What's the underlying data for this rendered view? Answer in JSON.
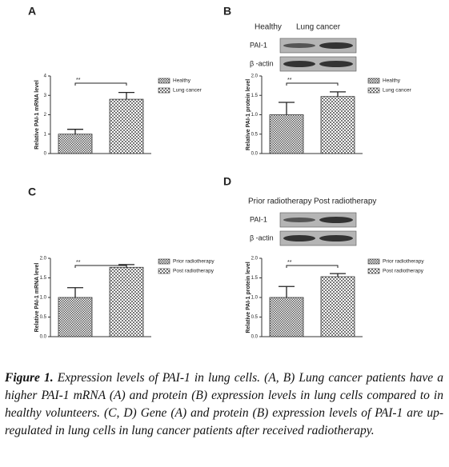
{
  "chart_data": [
    {
      "type": "bar",
      "panel": "A",
      "ylabel": "Relative PAI-1 mRNA level",
      "significance": "**",
      "categories": [
        "Healthy",
        "Lung cancer"
      ],
      "values": [
        1.0,
        2.8
      ],
      "errors": [
        0.25,
        0.35
      ],
      "ylim": [
        0,
        4
      ],
      "yticks": [
        0,
        1,
        2,
        3,
        4
      ]
    },
    {
      "type": "bar",
      "panel": "B",
      "ylabel": "Relative PAI-1 protein level",
      "significance": "**",
      "categories": [
        "Healthy",
        "Lung cancer"
      ],
      "values": [
        1.0,
        1.47
      ],
      "errors": [
        0.32,
        0.12
      ],
      "ylim": [
        0,
        2
      ],
      "yticks": [
        {
          "value": 0,
          "label": "0.0"
        },
        {
          "value": 0.5,
          "label": "0.5"
        },
        {
          "value": 1,
          "label": "1.0"
        },
        {
          "value": 1.5,
          "label": "1.5"
        },
        {
          "value": 2,
          "label": "2.0"
        }
      ],
      "blot": {
        "columns": [
          "Healthy",
          "Lung cancer"
        ],
        "rows": [
          "PAI-1",
          "β -actin"
        ]
      }
    },
    {
      "type": "bar",
      "panel": "C",
      "ylabel": "Relative PAI-1 mRNA level",
      "significance": "**",
      "categories": [
        "Prior radiotherapy",
        "Post radiotherapy"
      ],
      "values": [
        1.0,
        1.77
      ],
      "errors": [
        0.25,
        0.07
      ],
      "ylim": [
        0,
        2
      ],
      "yticks": [
        {
          "value": 0,
          "label": "0.0"
        },
        {
          "value": 0.5,
          "label": "0.5"
        },
        {
          "value": 1,
          "label": "1.0"
        },
        {
          "value": 1.5,
          "label": "1.5"
        },
        {
          "value": 2,
          "label": "2.0"
        }
      ]
    },
    {
      "type": "bar",
      "panel": "D",
      "ylabel": "Relative PAI-1 protein level",
      "significance": "**",
      "categories": [
        "Prior radiotherapy",
        "Post radiotherapy"
      ],
      "values": [
        1.0,
        1.53
      ],
      "errors": [
        0.28,
        0.08
      ],
      "ylim": [
        0,
        2
      ],
      "yticks": [
        {
          "value": 0,
          "label": "0.0"
        },
        {
          "value": 0.5,
          "label": "0.5"
        },
        {
          "value": 1,
          "label": "1.0"
        },
        {
          "value": 1.5,
          "label": "1.5"
        },
        {
          "value": 2,
          "label": "2.0"
        }
      ],
      "blot": {
        "columns": [
          "Prior radiotherapy",
          "Post radiotherapy"
        ],
        "rows": [
          "PAI-1",
          "β -actin"
        ]
      }
    }
  ],
  "caption": {
    "label": "Figure 1.",
    "text": "Expression levels of PAI-1 in lung cells. (A, B) Lung cancer patients have a higher PAI-1 mRNA (A) and protein (B) expression levels in lung cells compared to in healthy volunteers. (C, D) Gene (A) and protein (B) expression levels of PAI-1 are up-regulated in lung cells in lung cancer patients after received radiotherapy."
  }
}
